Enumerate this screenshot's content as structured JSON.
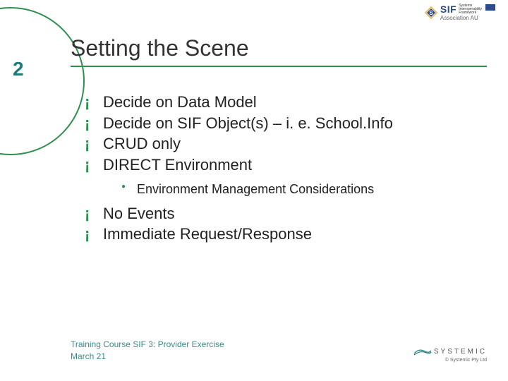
{
  "colors": {
    "accent": "#2f8f4e",
    "teal": "#1f7a7a",
    "sif_blue": "#2a4b8d",
    "sif_gold": "#e8a83a",
    "text": "#222222",
    "footer_teal": "#3a8a8a",
    "systemic_gray": "#555555"
  },
  "page_number": "2",
  "logo": {
    "sif": "SIF",
    "tagline_1": "Systems",
    "tagline_2": "Interoperability",
    "tagline_3": "Framework",
    "assoc": "Association AU"
  },
  "title": "Setting the Scene",
  "bullets": [
    {
      "text": "Decide on Data Model"
    },
    {
      "text": "Decide on SIF Object(s) – i. e. School.Info"
    },
    {
      "text": "CRUD only"
    },
    {
      "text": "DIRECT Environment",
      "sub": [
        {
          "text": "Environment Management Considerations"
        }
      ]
    },
    {
      "text": "No Events"
    },
    {
      "text": "Immediate Request/Response"
    }
  ],
  "footer": {
    "line1": "Training Course SIF 3: Provider Exercise",
    "line2": "March 21",
    "brand": "SYSTEMIC",
    "copyright": "© Systemic Pty Ltd"
  }
}
